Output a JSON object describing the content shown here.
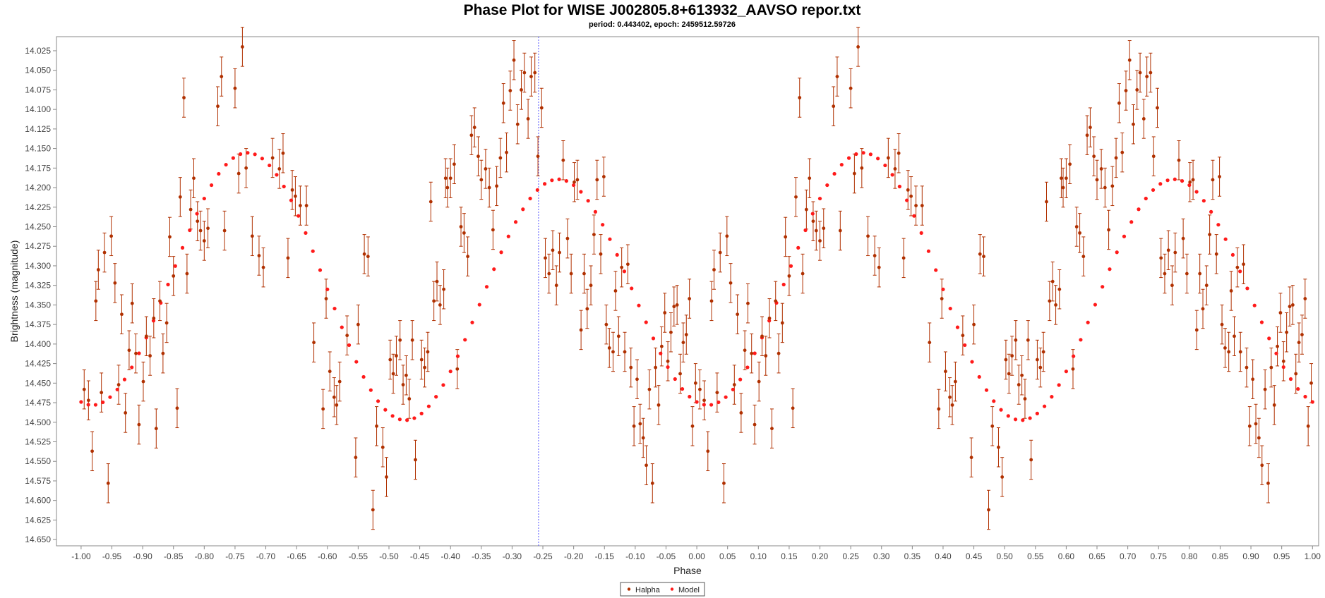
{
  "chart_data": {
    "type": "scatter",
    "title": "Phase Plot for WISE J002805.8+613932_AAVSO repor.txt",
    "subtitle": "period: 0.443402, epoch: 2459512.59726",
    "xlabel": "Phase",
    "ylabel": "Brightness (magnitude)",
    "xlim": [
      -1.04,
      1.01
    ],
    "ylim": [
      14.658,
      14.007
    ],
    "y_inverted": true,
    "grid": false,
    "legend_position": "bottom-center",
    "marker_line_x": -0.257,
    "x_ticks": [
      "-1.00",
      "-0.95",
      "-0.90",
      "-0.85",
      "-0.80",
      "-0.75",
      "-0.70",
      "-0.65",
      "-0.60",
      "-0.55",
      "-0.50",
      "-0.45",
      "-0.40",
      "-0.35",
      "-0.30",
      "-0.25",
      "-0.20",
      "-0.15",
      "-0.10",
      "-0.05",
      "0.00",
      "0.05",
      "0.10",
      "0.15",
      "0.20",
      "0.25",
      "0.30",
      "0.35",
      "0.40",
      "0.45",
      "0.50",
      "0.55",
      "0.60",
      "0.65",
      "0.70",
      "0.75",
      "0.80",
      "0.85",
      "0.90",
      "0.95",
      "1.00"
    ],
    "y_ticks": [
      "14.025",
      "14.050",
      "14.075",
      "14.100",
      "14.125",
      "14.150",
      "14.175",
      "14.200",
      "14.225",
      "14.250",
      "14.275",
      "14.300",
      "14.325",
      "14.350",
      "14.375",
      "14.400",
      "14.425",
      "14.450",
      "14.475",
      "14.500",
      "14.525",
      "14.550",
      "14.575",
      "14.600",
      "14.625",
      "14.650"
    ],
    "series": [
      {
        "name": "Halpha",
        "color": "#b03000",
        "error": 0.025,
        "points": [
          [
            0.005,
            14.458
          ],
          [
            0.012,
            14.472
          ],
          [
            0.018,
            14.537
          ],
          [
            0.024,
            14.345
          ],
          [
            0.028,
            14.305
          ],
          [
            0.033,
            14.462
          ],
          [
            0.038,
            14.283
          ],
          [
            0.044,
            14.578
          ],
          [
            0.049,
            14.262
          ],
          [
            0.055,
            14.322
          ],
          [
            0.061,
            14.452
          ],
          [
            0.066,
            14.362
          ],
          [
            0.072,
            14.488
          ],
          [
            0.078,
            14.408
          ],
          [
            0.083,
            14.348
          ],
          [
            0.089,
            14.412
          ],
          [
            0.094,
            14.503
          ],
          [
            0.101,
            14.448
          ],
          [
            0.106,
            14.39
          ],
          [
            0.112,
            14.415
          ],
          [
            0.118,
            14.367
          ],
          [
            0.122,
            14.508
          ],
          [
            0.128,
            14.345
          ],
          [
            0.133,
            14.412
          ],
          [
            0.139,
            14.373
          ],
          [
            0.144,
            14.263
          ],
          [
            0.15,
            14.313
          ],
          [
            0.156,
            14.482
          ],
          [
            0.161,
            14.212
          ],
          [
            0.167,
            14.085
          ],
          [
            0.172,
            14.31
          ],
          [
            0.178,
            14.228
          ],
          [
            0.183,
            14.188
          ],
          [
            0.189,
            14.243
          ],
          [
            0.194,
            14.255
          ],
          [
            0.2,
            14.268
          ],
          [
            0.206,
            14.252
          ],
          [
            0.222,
            14.096
          ],
          [
            0.228,
            14.058
          ],
          [
            0.233,
            14.255
          ],
          [
            0.25,
            14.073
          ],
          [
            0.256,
            14.182
          ],
          [
            0.262,
            14.02
          ],
          [
            0.268,
            14.175
          ],
          [
            0.278,
            14.262
          ],
          [
            0.289,
            14.287
          ],
          [
            0.296,
            14.302
          ],
          [
            0.311,
            14.162
          ],
          [
            0.322,
            14.176
          ],
          [
            0.328,
            14.156
          ],
          [
            0.336,
            14.29
          ],
          [
            0.343,
            14.203
          ],
          [
            0.348,
            14.211
          ],
          [
            0.356,
            14.223
          ],
          [
            0.366,
            14.223
          ],
          [
            0.378,
            14.398
          ],
          [
            0.393,
            14.483
          ],
          [
            0.398,
            14.342
          ],
          [
            0.404,
            14.435
          ],
          [
            0.411,
            14.468
          ],
          [
            0.415,
            14.478
          ],
          [
            0.42,
            14.448
          ],
          [
            0.432,
            14.389
          ],
          [
            0.446,
            14.545
          ],
          [
            0.45,
            14.375
          ],
          [
            0.46,
            14.285
          ],
          [
            0.466,
            14.288
          ],
          [
            0.474,
            14.612
          ],
          [
            0.48,
            14.505
          ],
          [
            0.49,
            14.532
          ],
          [
            0.496,
            14.57
          ],
          [
            0.502,
            14.42
          ],
          [
            0.507,
            14.438
          ],
          [
            0.512,
            14.415
          ],
          [
            0.518,
            14.395
          ],
          [
            0.523,
            14.452
          ],
          [
            0.528,
            14.44
          ],
          [
            0.533,
            14.47
          ],
          [
            0.538,
            14.395
          ],
          [
            0.543,
            14.548
          ],
          [
            0.553,
            14.42
          ],
          [
            0.558,
            14.43
          ],
          [
            0.563,
            14.41
          ],
          [
            0.568,
            14.218
          ],
          [
            0.573,
            14.345
          ],
          [
            0.578,
            14.32
          ],
          [
            0.583,
            14.35
          ],
          [
            0.589,
            14.33
          ],
          [
            0.592,
            14.188
          ],
          [
            0.595,
            14.2
          ],
          [
            0.6,
            14.188
          ],
          [
            0.606,
            14.17
          ],
          [
            0.611,
            14.432
          ],
          [
            0.617,
            14.25
          ],
          [
            0.622,
            14.258
          ],
          [
            0.628,
            14.288
          ],
          [
            0.634,
            14.133
          ],
          [
            0.639,
            14.123
          ],
          [
            0.645,
            14.16
          ],
          [
            0.65,
            14.19
          ],
          [
            0.657,
            14.176
          ],
          [
            0.663,
            14.2
          ],
          [
            0.669,
            14.254
          ],
          [
            0.675,
            14.198
          ],
          [
            0.681,
            14.162
          ],
          [
            0.686,
            14.092
          ],
          [
            0.691,
            14.155
          ],
          [
            0.697,
            14.076
          ],
          [
            0.703,
            14.037
          ],
          [
            0.709,
            14.119
          ],
          [
            0.715,
            14.075
          ],
          [
            0.72,
            14.053
          ],
          [
            0.726,
            14.112
          ],
          [
            0.731,
            14.058
          ],
          [
            0.737,
            14.053
          ],
          [
            0.742,
            14.16
          ],
          [
            0.748,
            14.098
          ],
          [
            0.754,
            14.29
          ],
          [
            0.76,
            14.31
          ],
          [
            0.766,
            14.28
          ],
          [
            0.772,
            14.325
          ],
          [
            0.777,
            14.283
          ],
          [
            0.783,
            14.165
          ],
          [
            0.79,
            14.265
          ],
          [
            0.796,
            14.31
          ],
          [
            0.801,
            14.193
          ],
          [
            0.806,
            14.19
          ],
          [
            0.812,
            14.382
          ],
          [
            0.817,
            14.31
          ],
          [
            0.822,
            14.355
          ],
          [
            0.828,
            14.325
          ],
          [
            0.833,
            14.26
          ],
          [
            0.838,
            14.19
          ],
          [
            0.844,
            14.285
          ],
          [
            0.849,
            14.186
          ],
          [
            0.853,
            14.375
          ],
          [
            0.858,
            14.405
          ],
          [
            0.864,
            14.41
          ],
          [
            0.868,
            14.332
          ],
          [
            0.873,
            14.39
          ],
          [
            0.878,
            14.302
          ],
          [
            0.883,
            14.41
          ],
          [
            0.888,
            14.298
          ],
          [
            0.893,
            14.43
          ],
          [
            0.898,
            14.505
          ],
          [
            0.903,
            14.445
          ],
          [
            0.908,
            14.502
          ],
          [
            0.913,
            14.52
          ],
          [
            0.918,
            14.555
          ],
          [
            0.923,
            14.458
          ],
          [
            0.928,
            14.578
          ],
          [
            0.933,
            14.43
          ],
          [
            0.938,
            14.478
          ],
          [
            0.943,
            14.403
          ],
          [
            0.948,
            14.36
          ],
          [
            0.953,
            14.422
          ],
          [
            0.958,
            14.385
          ],
          [
            0.963,
            14.352
          ],
          [
            0.968,
            14.35
          ],
          [
            0.973,
            14.438
          ],
          [
            0.978,
            14.398
          ],
          [
            0.983,
            14.388
          ],
          [
            0.988,
            14.342
          ],
          [
            0.993,
            14.505
          ],
          [
            0.998,
            14.45
          ]
        ]
      },
      {
        "name": "Model",
        "color": "#ff1a1a",
        "mean": 14.33,
        "components": [
          {
            "cycles": 2,
            "amplitude": 0.1575,
            "peak_phase": 0.7725
          },
          {
            "cycles": 1,
            "amplitude": 0.0195,
            "peak_phase": 0.19
          }
        ],
        "samples": 170
      }
    ]
  }
}
